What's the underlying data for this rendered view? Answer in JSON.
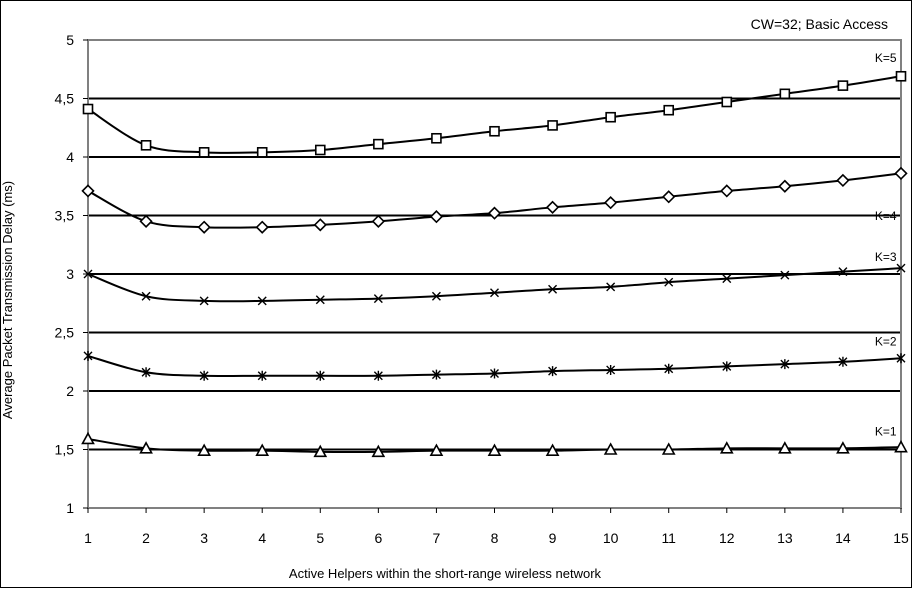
{
  "chart_data": {
    "type": "line",
    "title": "CW=32;  Basic Access",
    "xlabel": "Active Helpers within the short-range wireless network",
    "ylabel": "Average Packet Transmission Delay (ms)",
    "xlim": [
      1,
      15
    ],
    "ylim": [
      1,
      5
    ],
    "x_ticks": [
      "1",
      "2",
      "3",
      "4",
      "5",
      "6",
      "7",
      "8",
      "9",
      "10",
      "11",
      "12",
      "13",
      "14",
      "15"
    ],
    "y_ticks": [
      {
        "value": 1,
        "label": "1"
      },
      {
        "value": 1.5,
        "label": "1,5"
      },
      {
        "value": 2,
        "label": "2"
      },
      {
        "value": 2.5,
        "label": "2,5"
      },
      {
        "value": 3,
        "label": "3"
      },
      {
        "value": 3.5,
        "label": "3,5"
      },
      {
        "value": 4,
        "label": "4"
      },
      {
        "value": 4.5,
        "label": "4,5"
      },
      {
        "value": 5,
        "label": "5"
      }
    ],
    "grid": true,
    "x": [
      1,
      2,
      3,
      4,
      5,
      6,
      7,
      8,
      9,
      10,
      11,
      12,
      13,
      14,
      15
    ],
    "series": [
      {
        "name": "K=5",
        "marker": "square",
        "values": [
          4.41,
          4.1,
          4.04,
          4.04,
          4.06,
          4.11,
          4.16,
          4.22,
          4.27,
          4.34,
          4.4,
          4.47,
          4.54,
          4.61,
          4.69
        ]
      },
      {
        "name": "K=4",
        "marker": "diamond",
        "values": [
          3.71,
          3.45,
          3.4,
          3.4,
          3.42,
          3.45,
          3.49,
          3.52,
          3.57,
          3.61,
          3.66,
          3.71,
          3.75,
          3.8,
          3.86
        ]
      },
      {
        "name": "K=3",
        "marker": "x",
        "values": [
          3.0,
          2.81,
          2.77,
          2.77,
          2.78,
          2.79,
          2.81,
          2.84,
          2.87,
          2.89,
          2.93,
          2.96,
          2.99,
          3.02,
          3.05
        ]
      },
      {
        "name": "K=2",
        "marker": "star",
        "values": [
          2.3,
          2.16,
          2.13,
          2.13,
          2.13,
          2.13,
          2.14,
          2.15,
          2.17,
          2.18,
          2.19,
          2.21,
          2.23,
          2.25,
          2.28
        ]
      },
      {
        "name": "K=1",
        "marker": "triangle",
        "values": [
          1.59,
          1.51,
          1.49,
          1.49,
          1.48,
          1.48,
          1.49,
          1.49,
          1.49,
          1.5,
          1.5,
          1.51,
          1.51,
          1.51,
          1.52
        ]
      }
    ],
    "annotations": [
      {
        "series": "K=5",
        "text": "K=5",
        "x": 14.55,
        "y": 4.81
      },
      {
        "series": "K=4",
        "text": "K=4",
        "x": 14.55,
        "y": 3.46
      },
      {
        "series": "K=3",
        "text": "K=3",
        "x": 14.55,
        "y": 3.11
      },
      {
        "series": "K=2",
        "text": "K=2",
        "x": 14.55,
        "y": 2.39
      },
      {
        "series": "K=1",
        "text": "K=1",
        "x": 14.55,
        "y": 1.62
      }
    ]
  }
}
